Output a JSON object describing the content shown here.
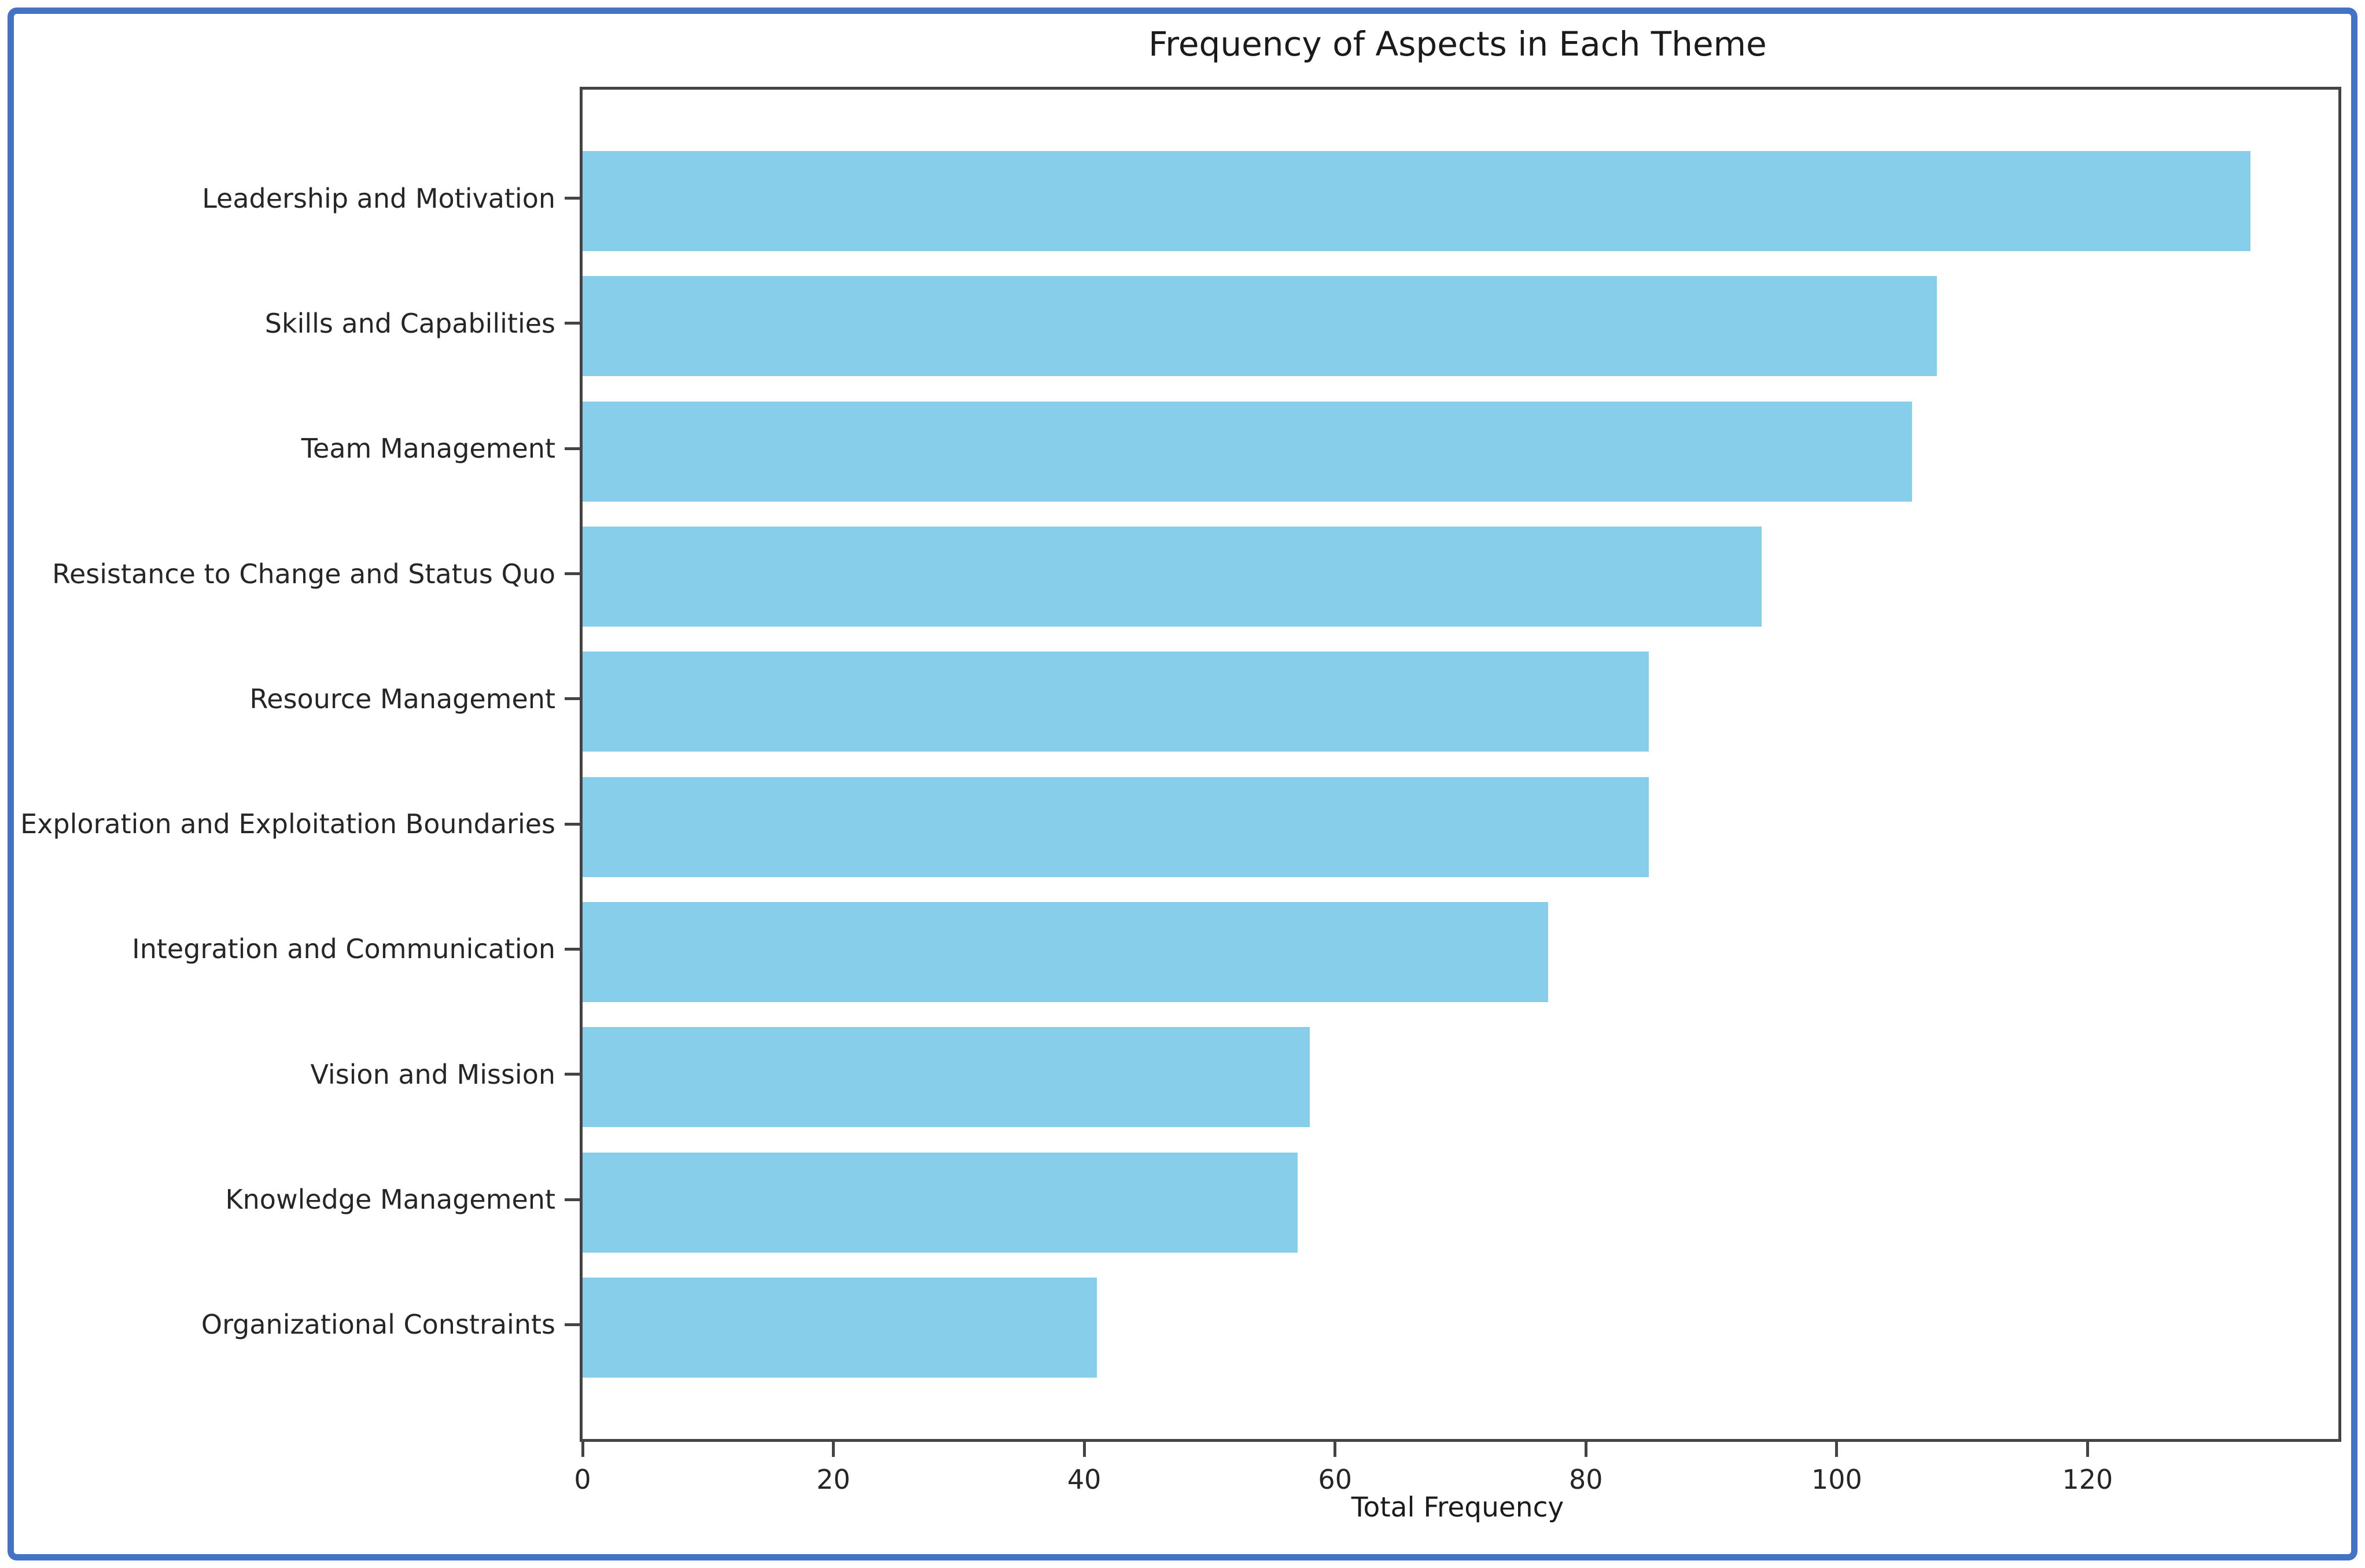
{
  "chart_data": {
    "type": "bar",
    "orientation": "horizontal",
    "title": "Frequency of Aspects in Each Theme",
    "xlabel": "Total Frequency",
    "ylabel": "",
    "categories": [
      "Leadership and Motivation",
      "Skills and Capabilities",
      "Team Management",
      "Resistance to Change and Status Quo",
      "Resource Management",
      "Exploration and Exploitation Boundaries",
      "Integration and Communication",
      "Vision and Mission",
      "Knowledge Management",
      "Organizational Constraints"
    ],
    "values": [
      133,
      108,
      106,
      94,
      85,
      85,
      77,
      58,
      57,
      41
    ],
    "xticks": [
      0,
      20,
      40,
      60,
      80,
      100,
      120
    ],
    "xlim": [
      0,
      140
    ],
    "grid": false,
    "legend": false,
    "bar_color": "#87CEEB"
  },
  "colors": {
    "frame_border": "#4472C4",
    "bar": "#87CEEB",
    "spine": "#444444",
    "text": "#1b1b1b"
  }
}
